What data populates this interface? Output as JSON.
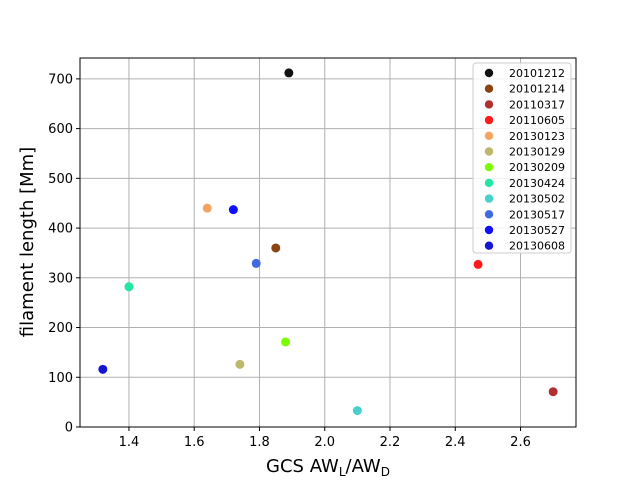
{
  "chart_data": {
    "type": "scatter",
    "title": "",
    "xlabel": "GCS AW",
    "xlabel_sub1": "L",
    "xlabel_mid": "/AW",
    "xlabel_sub2": "D",
    "ylabel": "filament length [Mm]",
    "xlim": [
      1.25,
      2.77
    ],
    "ylim": [
      0,
      742
    ],
    "xticks": [
      1.4,
      1.6,
      1.8,
      2.0,
      2.2,
      2.4,
      2.6
    ],
    "xtick_labels": [
      "1.4",
      "1.6",
      "1.8",
      "2.0",
      "2.2",
      "2.4",
      "2.6"
    ],
    "yticks": [
      0,
      100,
      200,
      300,
      400,
      500,
      600,
      700
    ],
    "ytick_labels": [
      "0",
      "100",
      "200",
      "300",
      "400",
      "500",
      "600",
      "700"
    ],
    "grid": true,
    "legend_position": "top-right",
    "series": [
      {
        "name": "20101212",
        "color": "#111111",
        "x": 1.89,
        "y": 712
      },
      {
        "name": "20101214",
        "color": "#8b4513",
        "x": 1.85,
        "y": 360
      },
      {
        "name": "20110317",
        "color": "#b03030",
        "x": 2.7,
        "y": 71
      },
      {
        "name": "20110605",
        "color": "#ff1a1a",
        "x": 2.47,
        "y": 327
      },
      {
        "name": "20130123",
        "color": "#f4a460",
        "x": 1.64,
        "y": 440
      },
      {
        "name": "20130129",
        "color": "#bdb76b",
        "x": 1.74,
        "y": 126
      },
      {
        "name": "20130209",
        "color": "#7cfc00",
        "x": 1.88,
        "y": 171
      },
      {
        "name": "20130424",
        "color": "#20e8a0",
        "x": 1.4,
        "y": 282
      },
      {
        "name": "20130502",
        "color": "#48d1cc",
        "x": 2.1,
        "y": 33
      },
      {
        "name": "20130517",
        "color": "#4169e1",
        "x": 1.79,
        "y": 329
      },
      {
        "name": "20130527",
        "color": "#1010ff",
        "x": 1.72,
        "y": 437
      },
      {
        "name": "20130608",
        "color": "#1515d6",
        "x": 1.32,
        "y": 116
      }
    ]
  }
}
